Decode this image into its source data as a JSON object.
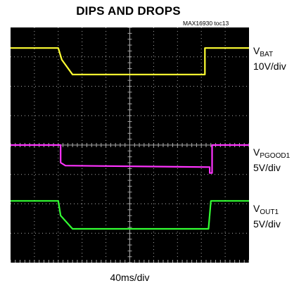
{
  "title": "DIPS AND DROPS",
  "figure_tag": "MAX16930 toc13",
  "x_scale": "40ms/div",
  "colors": {
    "vbat": "#ffff33",
    "vpgood": "#ff33ff",
    "vout": "#33ff33",
    "grid": "#aaaaaa",
    "background": "#000000"
  },
  "channels": [
    {
      "name": "V",
      "sub": "BAT",
      "scale": "10V/div"
    },
    {
      "name": "V",
      "sub": "PGOOD1",
      "scale": "5V/div"
    },
    {
      "name": "V",
      "sub": "OUT1",
      "scale": "5V/div"
    }
  ],
  "chart_data": {
    "type": "line",
    "title": "DIPS AND DROPS",
    "x_divisions": 10,
    "y_divisions": 8,
    "x_unit_per_div": "40ms",
    "series": [
      {
        "name": "VBAT",
        "scale": "10V/div",
        "x": [
          0,
          2.0,
          2.15,
          2.6,
          8.15,
          8.15,
          10
        ],
        "y": [
          7.3,
          7.3,
          6.9,
          6.4,
          6.4,
          7.3,
          7.3
        ]
      },
      {
        "name": "VPGOOD1",
        "scale": "5V/div",
        "x": [
          0,
          2.1,
          2.1,
          2.3,
          8.35,
          8.35,
          8.45,
          8.45,
          10
        ],
        "y": [
          4.0,
          4.0,
          3.4,
          3.3,
          3.25,
          3.05,
          3.05,
          4.0,
          4.0
        ]
      },
      {
        "name": "VOUT1",
        "scale": "5V/div",
        "x": [
          0,
          2.0,
          2.1,
          2.6,
          8.3,
          8.4,
          10
        ],
        "y": [
          2.1,
          2.1,
          1.6,
          1.15,
          1.15,
          2.1,
          2.1
        ]
      }
    ]
  }
}
